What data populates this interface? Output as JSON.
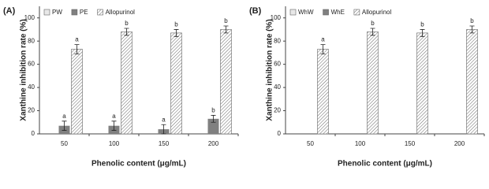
{
  "chart_data": [
    {
      "type": "bar",
      "title": "(A)",
      "x_label": "Phenolic  content (μg/mL)",
      "y_label": "Xanthine inhibition rate (%)",
      "categories": [
        "50",
        "100",
        "150",
        "200"
      ],
      "ylim": [
        0,
        110
      ],
      "yticks": [
        0,
        20,
        40,
        60,
        80,
        100
      ],
      "legend": "top-left",
      "series": [
        {
          "name": "PW",
          "color": "#e8e8e8",
          "values": [
            0,
            0,
            0,
            0
          ]
        },
        {
          "name": "PE",
          "color": "#808080",
          "values": [
            7,
            7,
            4,
            13
          ],
          "errors": [
            4,
            4,
            4,
            3
          ],
          "letters": [
            "a",
            "a",
            "a",
            "b"
          ]
        },
        {
          "name": "Allopurinol",
          "color": "hatch",
          "values": [
            73,
            88,
            87,
            90
          ],
          "errors": [
            4,
            3,
            3,
            3
          ],
          "letters": [
            "a",
            "b",
            "b",
            "b"
          ]
        }
      ]
    },
    {
      "type": "bar",
      "title": "(B)",
      "x_label": "Phenolic  content (μg/mL)",
      "y_label": "Xanthine inhibition rate (%)",
      "categories": [
        "50",
        "100",
        "150",
        "200"
      ],
      "ylim": [
        0,
        110
      ],
      "yticks": [
        0,
        20,
        40,
        60,
        80,
        100
      ],
      "legend": "top-left",
      "series": [
        {
          "name": "WhW",
          "color": "#e8e8e8",
          "values": [
            0,
            0,
            0,
            0
          ]
        },
        {
          "name": "WhE",
          "color": "#808080",
          "values": [
            0,
            0,
            0,
            0
          ]
        },
        {
          "name": "Allopurinol",
          "color": "hatch",
          "values": [
            73,
            88,
            87,
            90
          ],
          "errors": [
            4,
            3,
            3,
            3
          ],
          "letters": [
            "a",
            "b",
            "b",
            "b"
          ]
        }
      ]
    }
  ]
}
